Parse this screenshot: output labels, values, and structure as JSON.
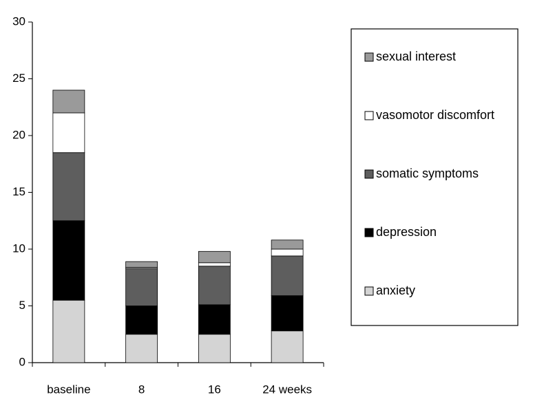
{
  "chart_data": {
    "type": "stacked-bar",
    "categories": [
      "baseline",
      "8",
      "16",
      "24 weeks"
    ],
    "series": [
      {
        "name": "anxiety",
        "color": "#d4d4d4",
        "values": [
          5.5,
          2.5,
          2.5,
          2.8
        ]
      },
      {
        "name": "depression",
        "color": "#000000",
        "values": [
          7,
          2.5,
          2.6,
          3.1
        ]
      },
      {
        "name": "somatic symptoms",
        "color": "#5e5e5e",
        "values": [
          6,
          3.3,
          3.4,
          3.5
        ]
      },
      {
        "name": "vasomotor discomfort",
        "color": "#ffffff",
        "values": [
          3.5,
          0.1,
          0.3,
          0.6
        ]
      },
      {
        "name": "sexual interest",
        "color": "#9a9a9a",
        "values": [
          2,
          0.5,
          1.0,
          0.8
        ]
      }
    ],
    "ylim": [
      0,
      30
    ],
    "yticks": [
      0,
      5,
      10,
      15,
      20,
      25,
      30
    ],
    "grid": false,
    "legend": "right"
  }
}
